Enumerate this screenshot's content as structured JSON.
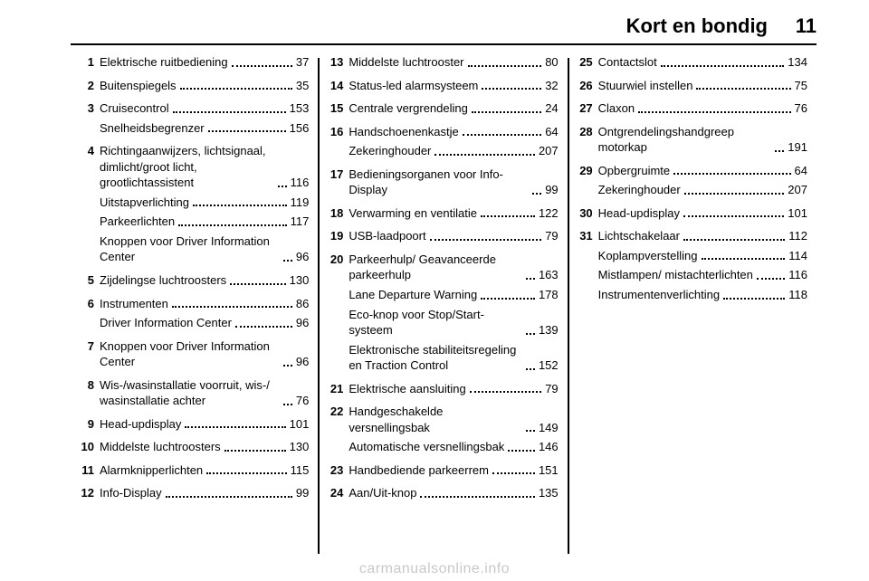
{
  "header": {
    "title": "Kort en bondig",
    "page": "11"
  },
  "watermark": "carmanualsonline.info",
  "columns": [
    [
      {
        "n": "1",
        "lines": [
          {
            "t": "Elektrische ruitbediening",
            "p": "37"
          }
        ]
      },
      {
        "n": "2",
        "lines": [
          {
            "t": "Buitenspiegels",
            "p": "35"
          }
        ]
      },
      {
        "n": "3",
        "lines": [
          {
            "t": "Cruisecontrol",
            "p": "153"
          },
          {
            "t": "Snelheidsbegrenzer",
            "p": "156"
          }
        ]
      },
      {
        "n": "4",
        "lines": [
          {
            "t": "Richtingaanwijzers, lichtsignaal, dimlicht/groot licht, grootlichtassistent",
            "p": "116"
          },
          {
            "t": "Uitstapverlichting",
            "p": "119"
          },
          {
            "t": "Parkeerlichten",
            "p": "117"
          },
          {
            "t": "Knoppen voor Driver Information Center",
            "p": "96"
          }
        ]
      },
      {
        "n": "5",
        "lines": [
          {
            "t": "Zijdelingse luchtroosters",
            "p": "130"
          }
        ]
      },
      {
        "n": "6",
        "lines": [
          {
            "t": "Instrumenten",
            "p": "86"
          },
          {
            "t": "Driver Information Center",
            "p": "96"
          }
        ]
      },
      {
        "n": "7",
        "lines": [
          {
            "t": "Knoppen voor Driver Information Center",
            "p": "96"
          }
        ]
      },
      {
        "n": "8",
        "lines": [
          {
            "t": "Wis-/wasinstallatie voorruit, wis-/ wasinstallatie achter",
            "p": "76"
          }
        ]
      },
      {
        "n": "9",
        "lines": [
          {
            "t": "Head-updisplay",
            "p": "101"
          }
        ]
      },
      {
        "n": "10",
        "lines": [
          {
            "t": "Middelste luchtroosters",
            "p": "130"
          }
        ]
      },
      {
        "n": "11",
        "lines": [
          {
            "t": "Alarmknipperlichten",
            "p": "115"
          }
        ]
      },
      {
        "n": "12",
        "lines": [
          {
            "t": "Info-Display",
            "p": "99"
          }
        ]
      }
    ],
    [
      {
        "n": "13",
        "lines": [
          {
            "t": "Middelste luchtrooster",
            "p": "80"
          }
        ]
      },
      {
        "n": "14",
        "lines": [
          {
            "t": "Status-led alarmsysteem",
            "p": "32"
          }
        ]
      },
      {
        "n": "15",
        "lines": [
          {
            "t": "Centrale vergrendeling",
            "p": "24"
          }
        ]
      },
      {
        "n": "16",
        "lines": [
          {
            "t": "Handschoenenkastje",
            "p": "64"
          },
          {
            "t": "Zekeringhouder",
            "p": "207"
          }
        ]
      },
      {
        "n": "17",
        "lines": [
          {
            "t": "Bedieningsorganen voor Info-Display",
            "p": "99"
          }
        ]
      },
      {
        "n": "18",
        "lines": [
          {
            "t": "Verwarming en ventilatie",
            "p": "122"
          }
        ]
      },
      {
        "n": "19",
        "lines": [
          {
            "t": "USB-laadpoort",
            "p": "79"
          }
        ]
      },
      {
        "n": "20",
        "lines": [
          {
            "t": "Parkeerhulp/ Geavanceerde parkeerhulp",
            "p": "163"
          },
          {
            "t": "Lane Departure Warning",
            "p": "178"
          },
          {
            "t": "Eco-knop voor Stop/Start-systeem",
            "p": "139"
          },
          {
            "t": "Elektronische stabiliteitsregeling en Traction Control",
            "p": "152"
          }
        ]
      },
      {
        "n": "21",
        "lines": [
          {
            "t": "Elektrische aansluiting",
            "p": "79"
          }
        ]
      },
      {
        "n": "22",
        "lines": [
          {
            "t": "Handgeschakelde versnellingsbak",
            "p": "149"
          },
          {
            "t": "Automatische versnellingsbak",
            "p": "146"
          }
        ]
      },
      {
        "n": "23",
        "lines": [
          {
            "t": "Handbediende parkeerrem",
            "p": "151"
          }
        ]
      },
      {
        "n": "24",
        "lines": [
          {
            "t": "Aan/Uit-knop",
            "p": "135"
          }
        ]
      }
    ],
    [
      {
        "n": "25",
        "lines": [
          {
            "t": "Contactslot",
            "p": "134"
          }
        ]
      },
      {
        "n": "26",
        "lines": [
          {
            "t": "Stuurwiel instellen",
            "p": "75"
          }
        ]
      },
      {
        "n": "27",
        "lines": [
          {
            "t": "Claxon",
            "p": "76"
          }
        ]
      },
      {
        "n": "28",
        "lines": [
          {
            "t": "Ontgrendelingshandgreep motorkap",
            "p": "191"
          }
        ]
      },
      {
        "n": "29",
        "lines": [
          {
            "t": "Opbergruimte",
            "p": "64"
          },
          {
            "t": "Zekeringhouder",
            "p": "207"
          }
        ]
      },
      {
        "n": "30",
        "lines": [
          {
            "t": "Head-updisplay",
            "p": "101"
          }
        ]
      },
      {
        "n": "31",
        "lines": [
          {
            "t": "Lichtschakelaar",
            "p": "112"
          },
          {
            "t": "Koplampverstelling",
            "p": "114"
          },
          {
            "t": "Mistlampen/ mistachterlichten",
            "p": "116"
          },
          {
            "t": "Instrumentenverlichting",
            "p": "118"
          }
        ]
      }
    ]
  ]
}
